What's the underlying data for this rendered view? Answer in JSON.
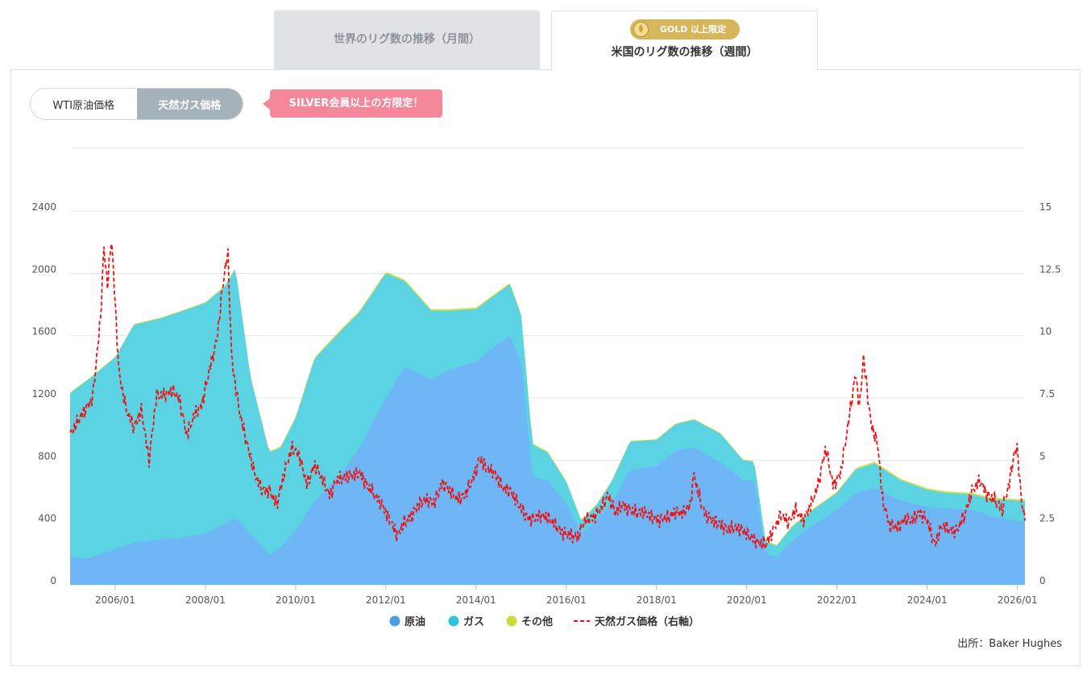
{
  "tabs": [
    {
      "label": "世界のリグ数の推移（月間）",
      "active": false
    },
    {
      "label": "米国のリグ数の推移（週間）",
      "active": true,
      "badge": "GOLD 以上限定"
    }
  ],
  "toggle": {
    "options": [
      "WTI原油価格",
      "天然ガス価格"
    ],
    "selected": "天然ガス価格"
  },
  "notice": "SILVER会員以上の方限定！",
  "source": "出所：Baker Hughes",
  "colors": {
    "oil": "#6eb6f5",
    "gas": "#5bd3e3",
    "other": "#d3e04c",
    "price": "#ee1111",
    "badge": "#d6b65a",
    "notice": "#f4889a"
  },
  "chart_data": {
    "type": "area",
    "x_ticks": [
      "2006/01",
      "2008/01",
      "2010/01",
      "2012/01",
      "2014/01",
      "2016/01",
      "2018/01",
      "2020/01",
      "2022/01",
      "2024/01",
      "2026/01"
    ],
    "y_left": {
      "min": 0,
      "max": 2400,
      "ticks": [
        0,
        400,
        800,
        1200,
        1600,
        2000,
        2400
      ]
    },
    "y_right": {
      "min": 0,
      "max": 15,
      "ticks": [
        "0",
        "2.5",
        "5",
        "7.5",
        "10",
        "12.5",
        "15"
      ]
    },
    "x_range": [
      "2005/01",
      "2026/03"
    ],
    "stacked_series": [
      {
        "name": "原油",
        "color": "#6eb6f5",
        "points": [
          [
            "2005/01",
            180
          ],
          [
            "2005/06",
            170
          ],
          [
            "2006/01",
            230
          ],
          [
            "2006/06",
            270
          ],
          [
            "2007/01",
            290
          ],
          [
            "2007/06",
            300
          ],
          [
            "2008/01",
            330
          ],
          [
            "2008/06",
            390
          ],
          [
            "2008/09",
            430
          ],
          [
            "2009/01",
            330
          ],
          [
            "2009/06",
            190
          ],
          [
            "2009/09",
            240
          ],
          [
            "2010/01",
            350
          ],
          [
            "2010/06",
            540
          ],
          [
            "2011/01",
            710
          ],
          [
            "2011/06",
            880
          ],
          [
            "2012/01",
            1200
          ],
          [
            "2012/06",
            1400
          ],
          [
            "2013/01",
            1320
          ],
          [
            "2013/06",
            1380
          ],
          [
            "2014/01",
            1430
          ],
          [
            "2014/06",
            1530
          ],
          [
            "2014/10",
            1600
          ],
          [
            "2015/01",
            1420
          ],
          [
            "2015/04",
            700
          ],
          [
            "2015/08",
            670
          ],
          [
            "2016/01",
            520
          ],
          [
            "2016/05",
            330
          ],
          [
            "2016/09",
            420
          ],
          [
            "2017/01",
            520
          ],
          [
            "2017/06",
            740
          ],
          [
            "2018/01",
            760
          ],
          [
            "2018/06",
            860
          ],
          [
            "2018/11",
            880
          ],
          [
            "2019/06",
            790
          ],
          [
            "2019/12",
            670
          ],
          [
            "2020/03",
            670
          ],
          [
            "2020/06",
            200
          ],
          [
            "2020/09",
            180
          ],
          [
            "2021/01",
            280
          ],
          [
            "2021/06",
            370
          ],
          [
            "2022/01",
            480
          ],
          [
            "2022/06",
            590
          ],
          [
            "2022/11",
            620
          ],
          [
            "2023/06",
            540
          ],
          [
            "2024/01",
            500
          ],
          [
            "2024/06",
            490
          ],
          [
            "2025/01",
            480
          ],
          [
            "2025/06",
            440
          ],
          [
            "2026/01",
            410
          ],
          [
            "2026/03",
            410
          ]
        ]
      },
      {
        "name": "ガス",
        "color": "#5bd3e3",
        "points": [
          [
            "2005/01",
            1050
          ],
          [
            "2005/06",
            1150
          ],
          [
            "2006/01",
            1230
          ],
          [
            "2006/06",
            1400
          ],
          [
            "2007/01",
            1420
          ],
          [
            "2007/06",
            1450
          ],
          [
            "2008/01",
            1480
          ],
          [
            "2008/06",
            1520
          ],
          [
            "2008/09",
            1600
          ],
          [
            "2009/01",
            1000
          ],
          [
            "2009/06",
            660
          ],
          [
            "2009/09",
            640
          ],
          [
            "2010/01",
            720
          ],
          [
            "2010/06",
            910
          ],
          [
            "2011/01",
            920
          ],
          [
            "2011/06",
            870
          ],
          [
            "2012/01",
            800
          ],
          [
            "2012/06",
            550
          ],
          [
            "2013/01",
            440
          ],
          [
            "2013/06",
            380
          ],
          [
            "2014/01",
            340
          ],
          [
            "2014/06",
            330
          ],
          [
            "2014/10",
            330
          ],
          [
            "2015/01",
            310
          ],
          [
            "2015/04",
            200
          ],
          [
            "2015/08",
            180
          ],
          [
            "2016/01",
            140
          ],
          [
            "2016/05",
            80
          ],
          [
            "2016/09",
            90
          ],
          [
            "2017/01",
            140
          ],
          [
            "2017/06",
            180
          ],
          [
            "2018/01",
            170
          ],
          [
            "2018/06",
            170
          ],
          [
            "2018/11",
            180
          ],
          [
            "2019/06",
            180
          ],
          [
            "2019/12",
            130
          ],
          [
            "2020/03",
            120
          ],
          [
            "2020/06",
            75
          ],
          [
            "2020/09",
            70
          ],
          [
            "2021/01",
            90
          ],
          [
            "2021/06",
            100
          ],
          [
            "2022/01",
            110
          ],
          [
            "2022/06",
            150
          ],
          [
            "2022/11",
            160
          ],
          [
            "2023/06",
            130
          ],
          [
            "2024/01",
            110
          ],
          [
            "2024/06",
            100
          ],
          [
            "2025/01",
            100
          ],
          [
            "2025/06",
            110
          ],
          [
            "2026/01",
            130
          ],
          [
            "2026/03",
            130
          ]
        ]
      },
      {
        "name": "その他",
        "color": "#d3e04c",
        "points": [
          [
            "2005/01",
            5
          ],
          [
            "2008/01",
            5
          ],
          [
            "2011/01",
            10
          ],
          [
            "2014/01",
            10
          ],
          [
            "2017/01",
            5
          ],
          [
            "2020/01",
            5
          ],
          [
            "2023/01",
            10
          ],
          [
            "2026/03",
            10
          ]
        ]
      }
    ],
    "price_series": {
      "name": "天然ガス価格（右軸）",
      "color": "#ee1111",
      "axis": "right",
      "points": [
        [
          "2005/01",
          6.0
        ],
        [
          "2005/04",
          6.8
        ],
        [
          "2005/07",
          7.5
        ],
        [
          "2005/09",
          10.5
        ],
        [
          "2005/10",
          13.5
        ],
        [
          "2005/11",
          12.0
        ],
        [
          "2005/12",
          14.0
        ],
        [
          "2006/02",
          8.5
        ],
        [
          "2006/04",
          7.0
        ],
        [
          "2006/06",
          6.3
        ],
        [
          "2006/08",
          7.0
        ],
        [
          "2006/10",
          5.0
        ],
        [
          "2006/12",
          7.6
        ],
        [
          "2007/02",
          7.6
        ],
        [
          "2007/04",
          7.8
        ],
        [
          "2007/06",
          7.5
        ],
        [
          "2007/08",
          6.0
        ],
        [
          "2007/10",
          6.8
        ],
        [
          "2007/12",
          7.2
        ],
        [
          "2008/02",
          8.6
        ],
        [
          "2008/04",
          9.8
        ],
        [
          "2008/06",
          12.5
        ],
        [
          "2008/07",
          13.3
        ],
        [
          "2008/08",
          9.0
        ],
        [
          "2008/10",
          7.0
        ],
        [
          "2008/12",
          5.7
        ],
        [
          "2009/02",
          4.5
        ],
        [
          "2009/04",
          3.8
        ],
        [
          "2009/06",
          3.8
        ],
        [
          "2009/08",
          3.2
        ],
        [
          "2009/10",
          4.5
        ],
        [
          "2009/12",
          5.5
        ],
        [
          "2010/02",
          5.2
        ],
        [
          "2010/04",
          4.0
        ],
        [
          "2010/06",
          4.8
        ],
        [
          "2010/08",
          4.3
        ],
        [
          "2010/10",
          3.6
        ],
        [
          "2010/12",
          4.2
        ],
        [
          "2011/02",
          4.3
        ],
        [
          "2011/04",
          4.4
        ],
        [
          "2011/06",
          4.5
        ],
        [
          "2011/08",
          4.0
        ],
        [
          "2011/10",
          3.6
        ],
        [
          "2011/12",
          3.2
        ],
        [
          "2012/02",
          2.6
        ],
        [
          "2012/04",
          2.0
        ],
        [
          "2012/06",
          2.5
        ],
        [
          "2012/08",
          2.8
        ],
        [
          "2012/10",
          3.3
        ],
        [
          "2012/12",
          3.4
        ],
        [
          "2013/02",
          3.3
        ],
        [
          "2013/04",
          4.1
        ],
        [
          "2013/06",
          3.8
        ],
        [
          "2013/08",
          3.4
        ],
        [
          "2013/10",
          3.6
        ],
        [
          "2013/12",
          4.2
        ],
        [
          "2014/02",
          5.1
        ],
        [
          "2014/04",
          4.6
        ],
        [
          "2014/06",
          4.5
        ],
        [
          "2014/08",
          3.9
        ],
        [
          "2014/10",
          3.8
        ],
        [
          "2014/12",
          3.3
        ],
        [
          "2015/02",
          2.8
        ],
        [
          "2015/04",
          2.6
        ],
        [
          "2015/06",
          2.8
        ],
        [
          "2015/08",
          2.7
        ],
        [
          "2015/10",
          2.4
        ],
        [
          "2015/12",
          2.1
        ],
        [
          "2016/02",
          2.0
        ],
        [
          "2016/04",
          1.9
        ],
        [
          "2016/06",
          2.6
        ],
        [
          "2016/08",
          2.7
        ],
        [
          "2016/10",
          3.0
        ],
        [
          "2016/12",
          3.6
        ],
        [
          "2017/02",
          2.9
        ],
        [
          "2017/04",
          3.2
        ],
        [
          "2017/06",
          3.0
        ],
        [
          "2017/08",
          2.9
        ],
        [
          "2017/10",
          2.9
        ],
        [
          "2017/12",
          2.7
        ],
        [
          "2018/02",
          2.6
        ],
        [
          "2018/04",
          2.7
        ],
        [
          "2018/06",
          2.9
        ],
        [
          "2018/08",
          2.9
        ],
        [
          "2018/10",
          3.2
        ],
        [
          "2018/11",
          4.5
        ],
        [
          "2018/12",
          3.7
        ],
        [
          "2019/02",
          2.8
        ],
        [
          "2019/04",
          2.6
        ],
        [
          "2019/06",
          2.4
        ],
        [
          "2019/08",
          2.2
        ],
        [
          "2019/10",
          2.3
        ],
        [
          "2019/12",
          2.2
        ],
        [
          "2020/02",
          1.9
        ],
        [
          "2020/04",
          1.7
        ],
        [
          "2020/06",
          1.6
        ],
        [
          "2020/08",
          2.2
        ],
        [
          "2020/10",
          2.8
        ],
        [
          "2020/12",
          2.5
        ],
        [
          "2021/02",
          3.0
        ],
        [
          "2021/04",
          2.6
        ],
        [
          "2021/06",
          3.2
        ],
        [
          "2021/08",
          4.0
        ],
        [
          "2021/10",
          5.5
        ],
        [
          "2021/12",
          4.0
        ],
        [
          "2022/02",
          4.5
        ],
        [
          "2022/04",
          6.5
        ],
        [
          "2022/06",
          8.5
        ],
        [
          "2022/07",
          7.0
        ],
        [
          "2022/08",
          9.2
        ],
        [
          "2022/10",
          6.5
        ],
        [
          "2022/12",
          5.5
        ],
        [
          "2023/01",
          3.5
        ],
        [
          "2023/03",
          2.4
        ],
        [
          "2023/05",
          2.3
        ],
        [
          "2023/07",
          2.6
        ],
        [
          "2023/09",
          2.6
        ],
        [
          "2023/11",
          2.9
        ],
        [
          "2024/01",
          2.6
        ],
        [
          "2024/03",
          1.6
        ],
        [
          "2024/05",
          2.4
        ],
        [
          "2024/07",
          2.2
        ],
        [
          "2024/09",
          2.2
        ],
        [
          "2024/11",
          2.8
        ],
        [
          "2025/01",
          3.8
        ],
        [
          "2025/03",
          4.2
        ],
        [
          "2025/05",
          3.6
        ],
        [
          "2025/07",
          3.4
        ],
        [
          "2025/09",
          3.0
        ],
        [
          "2025/11",
          4.2
        ],
        [
          "2025/12",
          5.2
        ],
        [
          "2026/01",
          5.5
        ],
        [
          "2026/02",
          3.4
        ],
        [
          "2026/03",
          2.7
        ]
      ]
    },
    "legend": [
      {
        "label": "原油",
        "type": "dot",
        "color": "#4a9ee8"
      },
      {
        "label": "ガス",
        "type": "dot",
        "color": "#2ec4d8"
      },
      {
        "label": "その他",
        "type": "dot",
        "color": "#c9da3a"
      },
      {
        "label": "天然ガス価格（右軸）",
        "type": "dash",
        "color": "#ee1111"
      }
    ],
    "legend_position": "bottom-center",
    "grid": true
  }
}
